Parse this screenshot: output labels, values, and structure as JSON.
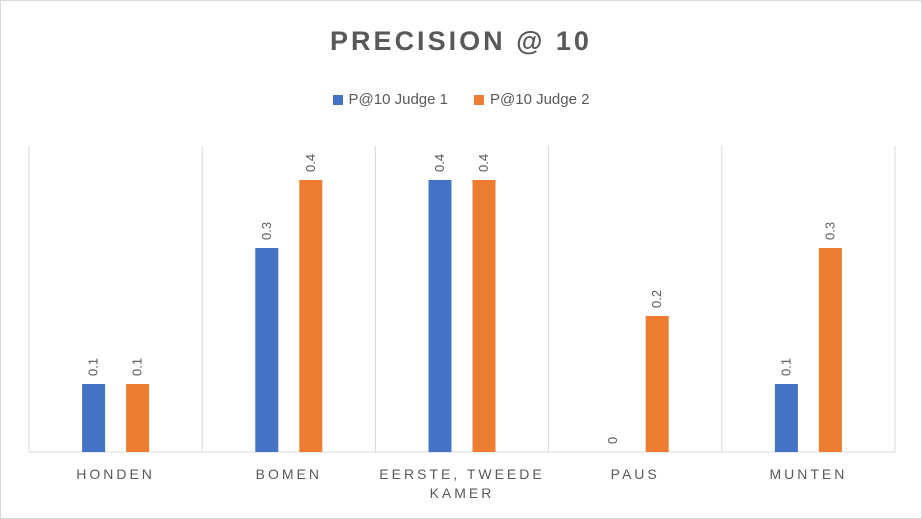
{
  "chart_data": {
    "type": "bar",
    "title": "PRECISION @ 10",
    "categories": [
      "HONDEN",
      "BOMEN",
      "EERSTE, TWEEDE KAMER",
      "PAUS",
      "MUNTEN"
    ],
    "category_lines": [
      [
        "HONDEN"
      ],
      [
        "BOMEN"
      ],
      [
        "EERSTE, TWEEDE",
        "KAMER"
      ],
      [
        "PAUS"
      ],
      [
        "MUNTEN"
      ]
    ],
    "series": [
      {
        "name": "P@10 Judge 1",
        "color": "#4472c4",
        "values": [
          0.1,
          0.3,
          0.4,
          0,
          0.1
        ]
      },
      {
        "name": "P@10 Judge 2",
        "color": "#ed7d31",
        "values": [
          0.1,
          0.4,
          0.4,
          0.2,
          0.3
        ]
      }
    ],
    "ylim": [
      0,
      0.45
    ],
    "grid": "vertical category separators",
    "legend_position": "top"
  }
}
